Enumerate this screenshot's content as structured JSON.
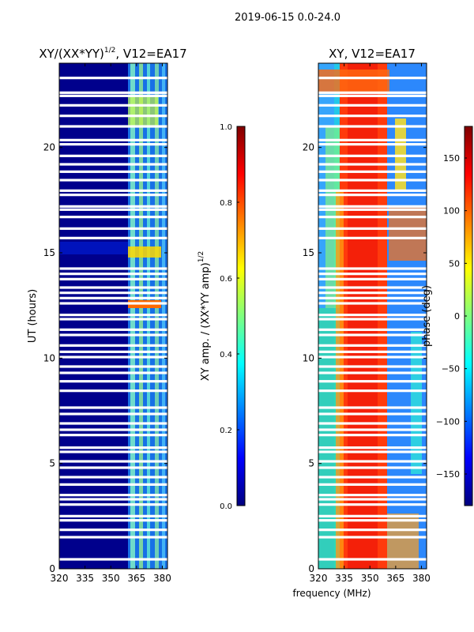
{
  "figure_title": "2019-06-15 0.0-24.0",
  "chart_data": [
    {
      "type": "heatmap",
      "title_main": "XY/(XX*YY)",
      "title_exp": "1/2",
      "title_rest": ", V12=EA17",
      "xlabel": "",
      "ylabel": "UT (hours)",
      "xlim": [
        320,
        383
      ],
      "ylim": [
        0,
        24
      ],
      "xticks": [
        320,
        335,
        350,
        365,
        380
      ],
      "yticks": [
        0,
        5,
        10,
        15,
        20
      ],
      "colorbar": {
        "label_main": "XY amp. / (XX*YY amp)",
        "label_exp": "1/2",
        "range": [
          0.0,
          1.0
        ],
        "ticks": [
          "0.0",
          "0.2",
          "0.4",
          "0.6",
          "0.8",
          "1.0"
        ],
        "tick_values": [
          0.0,
          0.2,
          0.4,
          0.6,
          0.8,
          1.0
        ],
        "colormap": "jet"
      }
    },
    {
      "type": "heatmap",
      "title_main": "XY, V12=EA17",
      "xlabel": "frequency (MHz)",
      "ylabel": "",
      "xlim": [
        320,
        383
      ],
      "ylim": [
        0,
        24
      ],
      "xticks": [
        320,
        335,
        350,
        365,
        380
      ],
      "yticks": [
        0,
        5,
        10,
        15,
        20
      ],
      "colorbar": {
        "label_main": "phase (deg)",
        "range": [
          -180,
          180
        ],
        "ticks": [
          "−150",
          "−100",
          "−50",
          "0",
          "50",
          "100",
          "150"
        ],
        "tick_values": [
          -150,
          -100,
          -50,
          0,
          50,
          100,
          150
        ],
        "colormap": "jet"
      }
    }
  ],
  "gaps_ut_hours": [
    0.45,
    1.5,
    1.85,
    2.3,
    2.5,
    3.05,
    3.3,
    3.5,
    4.0,
    4.35,
    4.8,
    5.1,
    5.55,
    5.75,
    6.35,
    6.6,
    6.9,
    7.35,
    7.65,
    8.45,
    8.9,
    9.3,
    9.6,
    10.05,
    10.3,
    10.6,
    11.1,
    11.35,
    11.85,
    12.05,
    12.6,
    12.85,
    13.1,
    13.35,
    13.75,
    14.0,
    14.25,
    15.7,
    16.15,
    16.7,
    17.05,
    17.2,
    17.75,
    17.95,
    18.45,
    18.85,
    19.2,
    19.6,
    20.15,
    20.35,
    21.0,
    21.5,
    22.0,
    22.45,
    22.6,
    23.3
  ],
  "colors": {
    "axis": "#000000",
    "gap": "#ffffff"
  }
}
